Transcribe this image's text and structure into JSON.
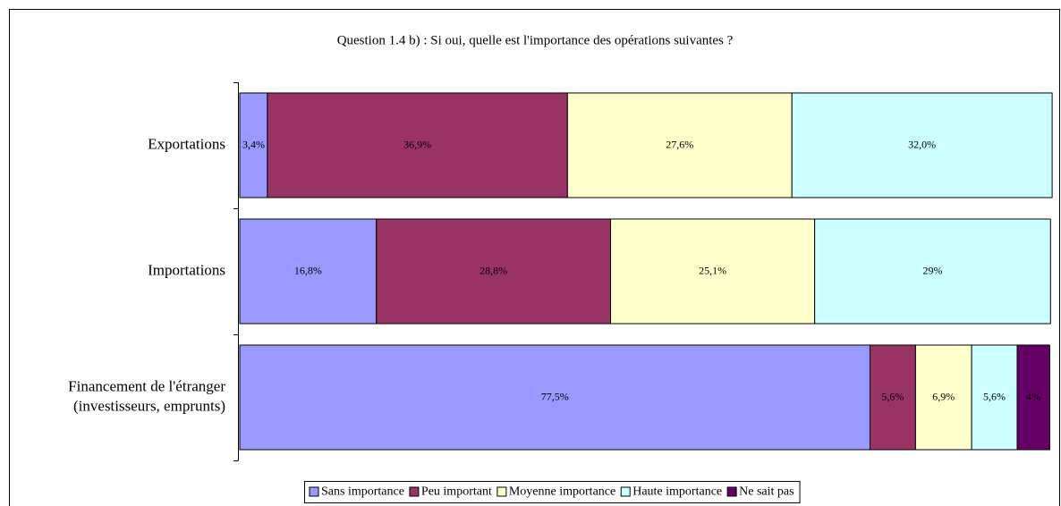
{
  "chart_data": {
    "type": "stacked-barh",
    "title": "Question 1.4 b) : Si oui, quelle est l'importance des opérations suivantes ?",
    "categories": [
      "Exportations",
      "Importations",
      "Financement de l'étranger\n(investisseurs, emprunts)"
    ],
    "xlim": [
      0,
      100
    ],
    "series": [
      {
        "name": "Sans importance",
        "color": "#9999ff",
        "values": [
          3.4,
          16.8,
          77.5
        ],
        "value_labels": [
          "3,4%",
          "16,8%",
          "77,5%"
        ]
      },
      {
        "name": "Peu important",
        "color": "#993366",
        "values": [
          36.9,
          28.8,
          5.6
        ],
        "value_labels": [
          "36,9%",
          "28,8%",
          "5,6%"
        ]
      },
      {
        "name": "Moyenne importance",
        "color": "#ffffcc",
        "values": [
          27.6,
          25.1,
          6.9
        ],
        "value_labels": [
          "27,6%",
          "25,1%",
          "6,9%"
        ]
      },
      {
        "name": "Haute importance",
        "color": "#ccffff",
        "values": [
          32.0,
          29,
          5.6
        ],
        "value_labels": [
          "32,0%",
          "29%",
          "5,6%"
        ]
      },
      {
        "name": "Ne sait pas",
        "color": "#660066",
        "values": [
          0,
          0,
          4
        ],
        "value_labels": [
          null,
          null,
          "4%"
        ]
      }
    ],
    "legend": "bottom"
  }
}
